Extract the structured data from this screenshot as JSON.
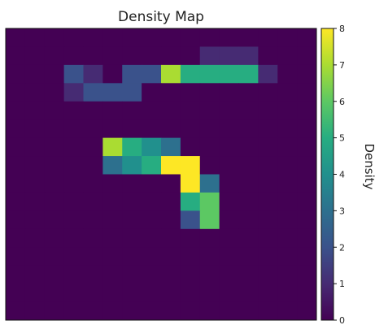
{
  "chart_data": {
    "type": "heatmap",
    "title": "Density Map",
    "colorbar": {
      "label": "Density",
      "range": [
        0,
        8
      ],
      "ticks": [
        0,
        1,
        2,
        3,
        4,
        5,
        6,
        7,
        8
      ],
      "colormap": "viridis"
    },
    "grid": false,
    "rows": 16,
    "cols": 16,
    "z": [
      [
        0,
        0,
        0,
        0,
        0,
        0,
        0,
        0,
        0,
        0,
        0,
        0,
        0,
        0,
        0,
        0
      ],
      [
        0,
        0,
        0,
        0,
        0,
        0,
        0,
        0,
        0,
        0,
        1,
        1,
        1,
        0,
        0,
        0
      ],
      [
        0,
        0,
        0,
        2,
        1,
        0,
        2,
        2,
        7,
        5,
        5,
        5,
        5,
        1,
        0,
        0
      ],
      [
        0,
        0,
        0,
        1,
        2,
        2,
        2,
        0,
        0,
        0,
        0,
        0,
        0,
        0,
        0,
        0
      ],
      [
        0,
        0,
        0,
        0,
        0,
        0,
        0,
        0,
        0,
        0,
        0,
        0,
        0,
        0,
        0,
        0
      ],
      [
        0,
        0,
        0,
        0,
        0,
        0,
        0,
        0,
        0,
        0,
        0,
        0,
        0,
        0,
        0,
        0
      ],
      [
        0,
        0,
        0,
        0,
        0,
        7,
        5,
        4,
        3,
        0,
        0,
        0,
        0,
        0,
        0,
        0
      ],
      [
        0,
        0,
        0,
        0,
        0,
        3,
        4,
        5,
        8,
        8,
        0,
        0,
        0,
        0,
        0,
        0
      ],
      [
        0,
        0,
        0,
        0,
        0,
        0,
        0,
        0,
        0,
        8,
        3,
        0,
        0,
        0,
        0,
        0
      ],
      [
        0,
        0,
        0,
        0,
        0,
        0,
        0,
        0,
        0,
        5,
        6,
        0,
        0,
        0,
        0,
        0
      ],
      [
        0,
        0,
        0,
        0,
        0,
        0,
        0,
        0,
        0,
        2,
        6,
        0,
        0,
        0,
        0,
        0
      ],
      [
        0,
        0,
        0,
        0,
        0,
        0,
        0,
        0,
        0,
        0,
        0,
        0,
        0,
        0,
        0,
        0
      ],
      [
        0,
        0,
        0,
        0,
        0,
        0,
        0,
        0,
        0,
        0,
        0,
        0,
        0,
        0,
        0,
        0
      ],
      [
        0,
        0,
        0,
        0,
        0,
        0,
        0,
        0,
        0,
        0,
        0,
        0,
        0,
        0,
        0,
        0
      ],
      [
        0,
        0,
        0,
        0,
        0,
        0,
        0,
        0,
        0,
        0,
        0,
        0,
        0,
        0,
        0,
        0
      ],
      [
        0,
        0,
        0,
        0,
        0,
        0,
        0,
        0,
        0,
        0,
        0,
        0,
        0,
        0,
        0,
        0
      ]
    ]
  }
}
